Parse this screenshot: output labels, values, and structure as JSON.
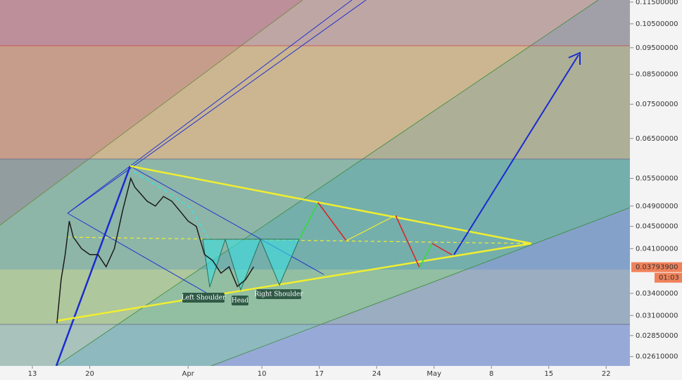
{
  "chart_data": {
    "type": "line",
    "log_scale": true,
    "color": "#1b1b1b",
    "x": [
      3,
      3.5,
      4,
      4.5,
      5,
      6,
      7,
      8,
      9,
      10,
      11,
      12,
      12.5,
      13,
      14,
      15,
      16,
      17,
      18,
      19,
      20,
      21,
      22,
      23,
      24,
      25,
      26,
      27
    ],
    "values": [
      0.03,
      0.036,
      0.04,
      0.046,
      0.043,
      0.041,
      0.04,
      0.04,
      0.038,
      0.041,
      0.048,
      0.055,
      0.053,
      0.052,
      0.05,
      0.049,
      0.051,
      0.05,
      0.048,
      0.046,
      0.045,
      0.04,
      0.039,
      0.037,
      0.038,
      0.035,
      0.036,
      0.038
    ],
    "xlim": [
      -3.95,
      72.9
    ],
    "xticks": [
      {
        "value": 0,
        "label": "13"
      },
      {
        "value": 7,
        "label": "20"
      },
      {
        "value": 19,
        "label": "Apr"
      },
      {
        "value": 28,
        "label": "10"
      },
      {
        "value": 35,
        "label": "17"
      },
      {
        "value": 42,
        "label": "24"
      },
      {
        "value": 49,
        "label": "May"
      },
      {
        "value": 56,
        "label": "8"
      },
      {
        "value": 63,
        "label": "15"
      },
      {
        "value": 70,
        "label": "22"
      }
    ],
    "ylim": [
      0.0251,
      0.116
    ],
    "yticks": [
      {
        "value": 0.115,
        "label": "0.11500000"
      },
      {
        "value": 0.105,
        "label": "0.10500000"
      },
      {
        "value": 0.095,
        "label": "0.09500000"
      },
      {
        "value": 0.085,
        "label": "0.08500000"
      },
      {
        "value": 0.075,
        "label": "0.07500000"
      },
      {
        "value": 0.065,
        "label": "0.06500000"
      },
      {
        "value": 0.055,
        "label": "0.05500000"
      },
      {
        "value": 0.049,
        "label": "0.04900000"
      },
      {
        "value": 0.045,
        "label": "0.04500000"
      },
      {
        "value": 0.041,
        "label": "0.04100000"
      },
      {
        "value": 0.034,
        "label": "0.03400000"
      },
      {
        "value": 0.031,
        "label": "0.03100000"
      },
      {
        "value": 0.0285,
        "label": "0.02850000"
      },
      {
        "value": 0.0261,
        "label": "0.02610000"
      }
    ],
    "price_tag": {
      "value": 0.037939,
      "label": "0.03793900"
    },
    "countdown": "01:03",
    "annotations": [
      "Left Shoulder",
      "Head",
      "Right Shoulder"
    ]
  }
}
